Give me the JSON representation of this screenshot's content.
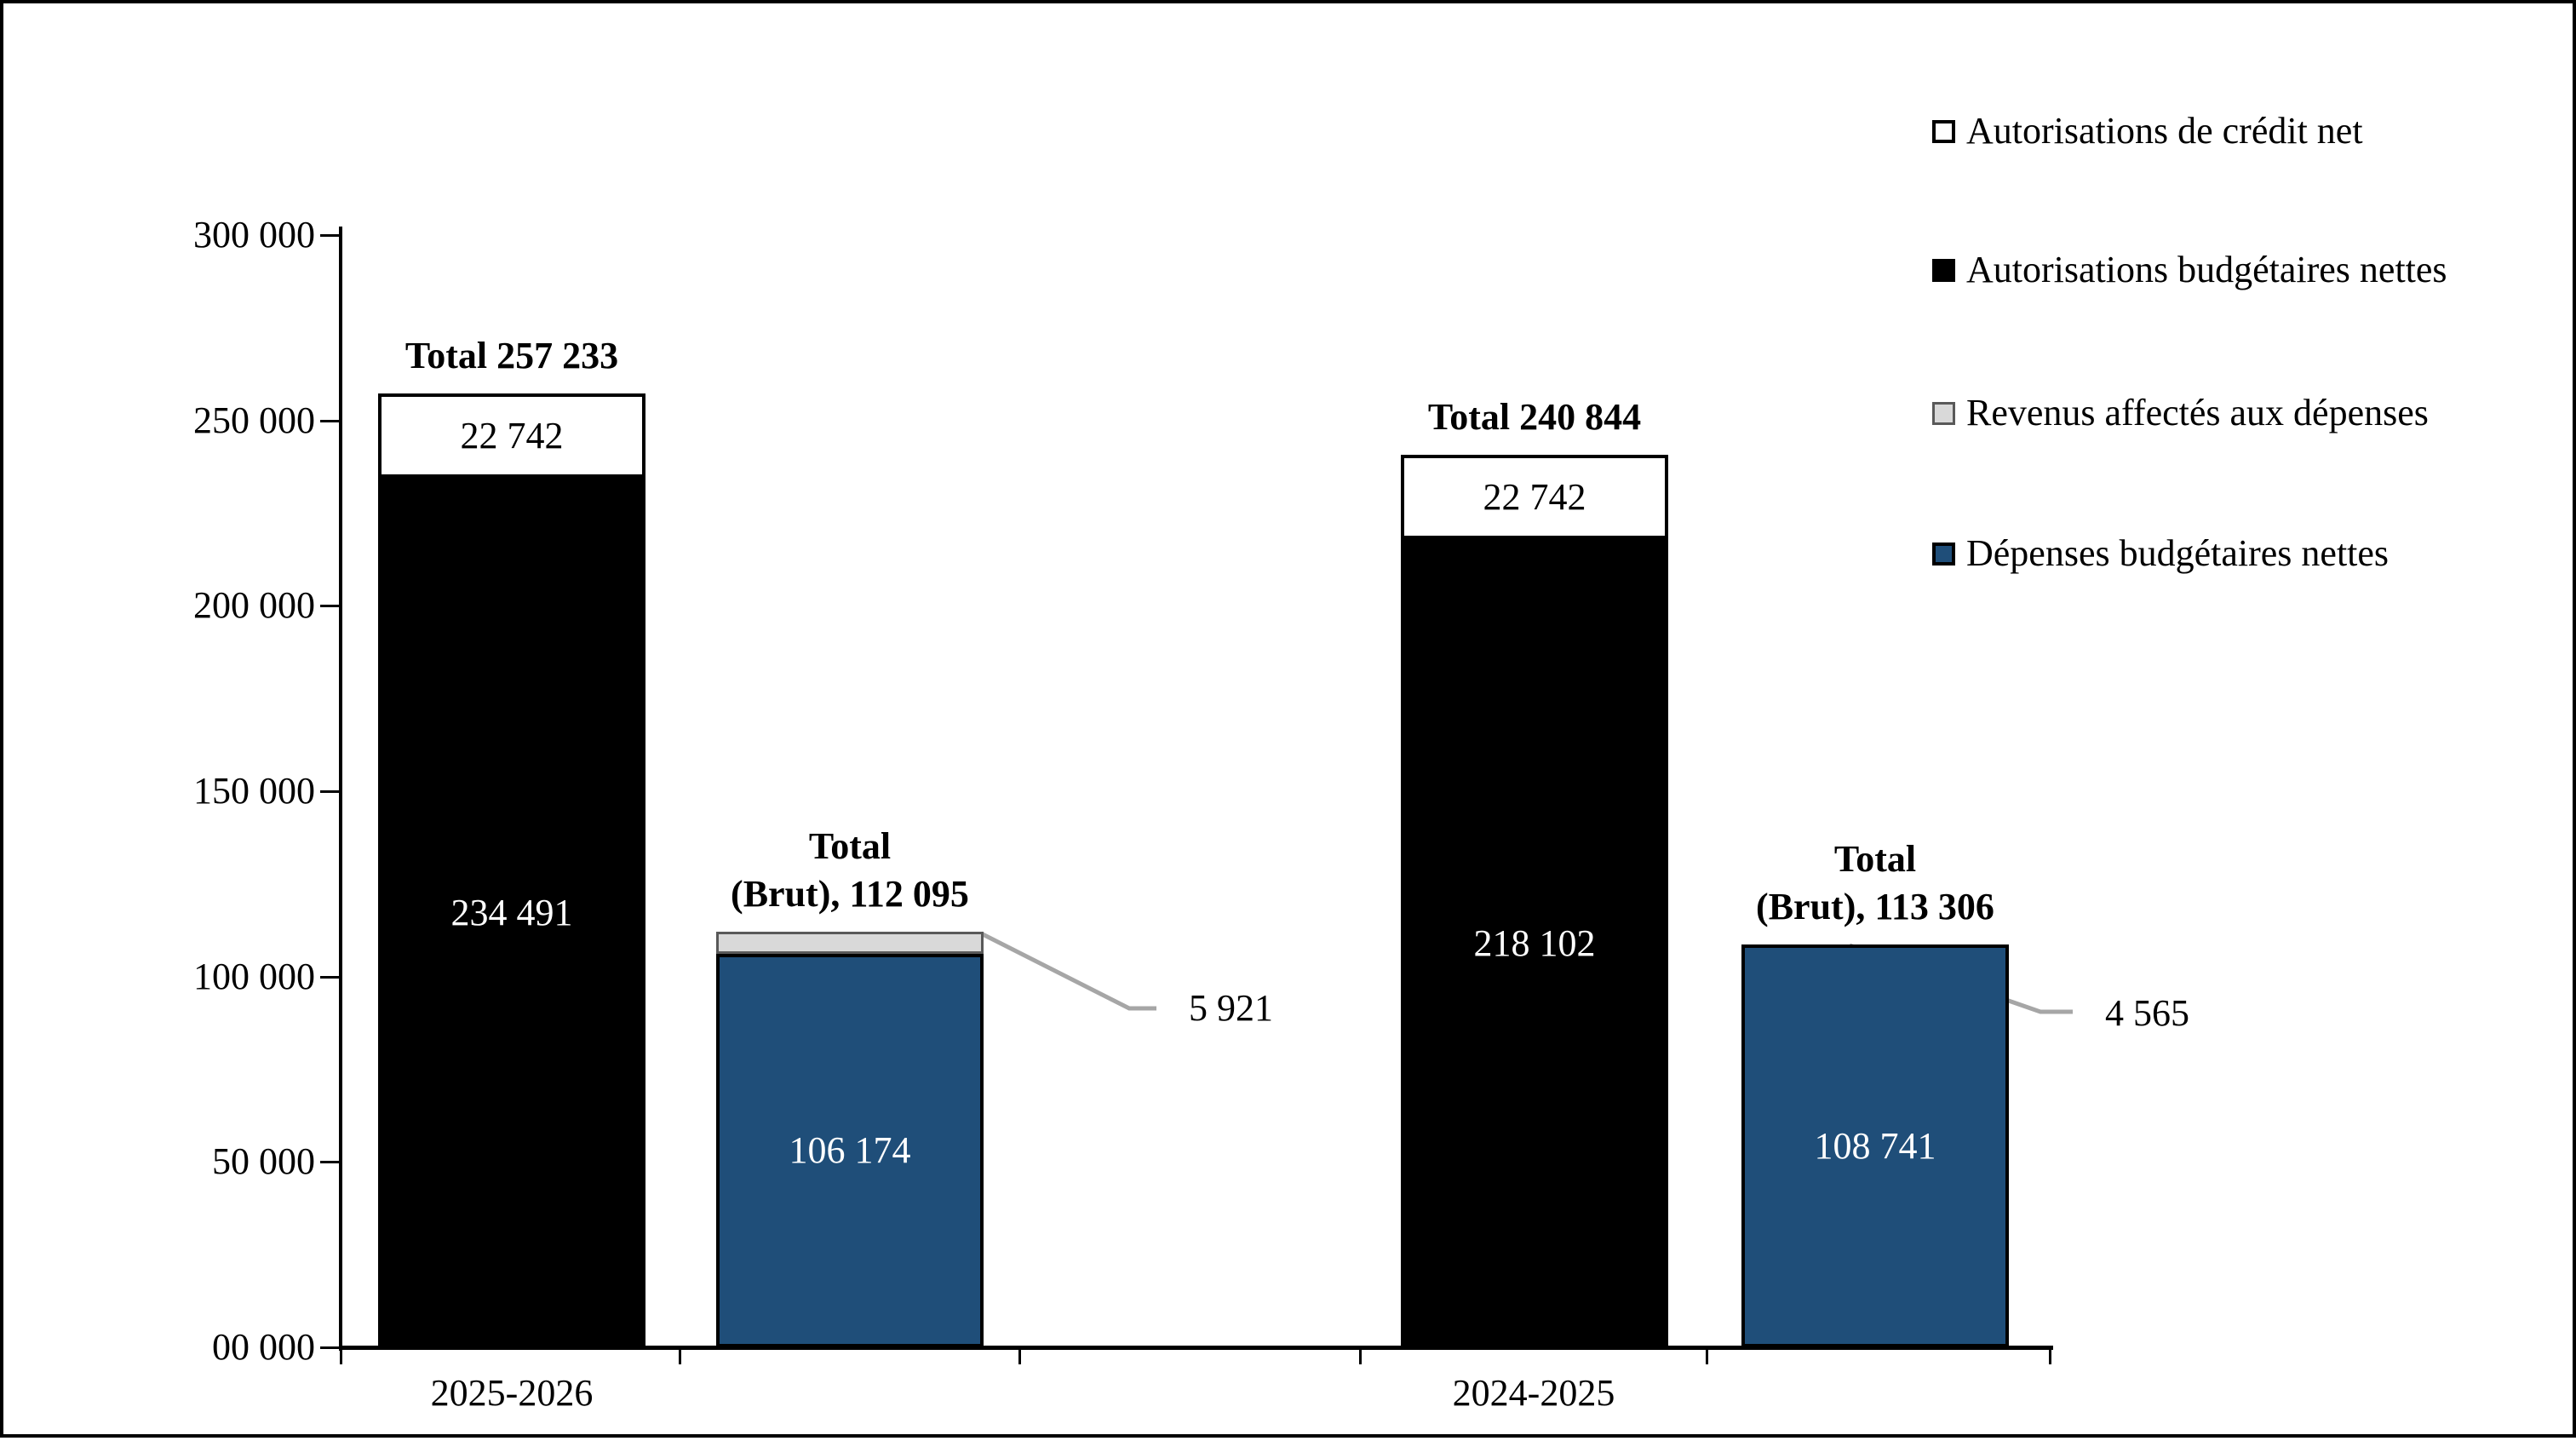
{
  "chart_data": {
    "type": "bar",
    "stacked": true,
    "grid": false,
    "legend_position": "right",
    "ylim": [
      0,
      300000
    ],
    "callout_color": "#A6A6A6",
    "axis_color": "#000000",
    "y_ticks": [
      {
        "value": 300000,
        "label": "300 000"
      },
      {
        "value": 250000,
        "label": "250 000"
      },
      {
        "value": 200000,
        "label": "200 000"
      },
      {
        "value": 150000,
        "label": "150 000"
      },
      {
        "value": 100000,
        "label": "100 000"
      },
      {
        "value": 50000,
        "label": "50 000"
      },
      {
        "value": 0,
        "label": "00 000"
      }
    ],
    "series": [
      {
        "id": "credit_net",
        "label": "Autorisations de crédit net",
        "fill": "#FFFFFF",
        "border": "#000000",
        "border_px": 4,
        "text": "#000000"
      },
      {
        "id": "budget_net",
        "label": "Autorisations budgétaires nettes",
        "fill": "#000000",
        "border": "#000000",
        "border_px": 4,
        "text": "#FFFFFF"
      },
      {
        "id": "revenus",
        "label": "Revenus affectés aux dépenses",
        "fill": "#D9D9D9",
        "border": "#595959",
        "border_px": 3,
        "text": "#000000"
      },
      {
        "id": "depenses",
        "label": "Dépenses budgétaires nettes",
        "fill": "#1F4E79",
        "border": "#000000",
        "border_px": 4,
        "text": "#FFFFFF"
      }
    ],
    "groups": [
      {
        "label": "2025-2026",
        "bars": [
          {
            "total_label": "Total 257 233",
            "total": 257233,
            "segments": [
              {
                "series": "budget_net",
                "value": 234491,
                "label": "234 491"
              },
              {
                "series": "credit_net",
                "value": 22742,
                "label": "22 742"
              }
            ]
          },
          {
            "total_label": "Total\n(Brut), 112 095",
            "total": 112095,
            "segments": [
              {
                "series": "depenses",
                "value": 106174,
                "label": "106 174"
              },
              {
                "series": "revenus",
                "value": 5921,
                "label": null,
                "callout_label": "5 921"
              }
            ]
          }
        ]
      },
      {
        "label": "2024-2025",
        "bars": [
          {
            "total_label": "Total 240 844",
            "total": 240844,
            "segments": [
              {
                "series": "budget_net",
                "value": 218102,
                "label": "218 102"
              },
              {
                "series": "credit_net",
                "value": 22742,
                "label": "22 742"
              }
            ]
          },
          {
            "total_label": "Total\n(Brut), 113 306",
            "total": 113306,
            "segments": [
              {
                "series": "depenses",
                "value": 108741,
                "label": "108 741"
              },
              {
                "series": "revenus",
                "value": 4565,
                "label": null,
                "callout_label": "4 565",
                "render_segment": false
              }
            ]
          }
        ]
      }
    ],
    "legend_order": [
      "credit_net",
      "budget_net",
      "revenus",
      "depenses"
    ]
  }
}
